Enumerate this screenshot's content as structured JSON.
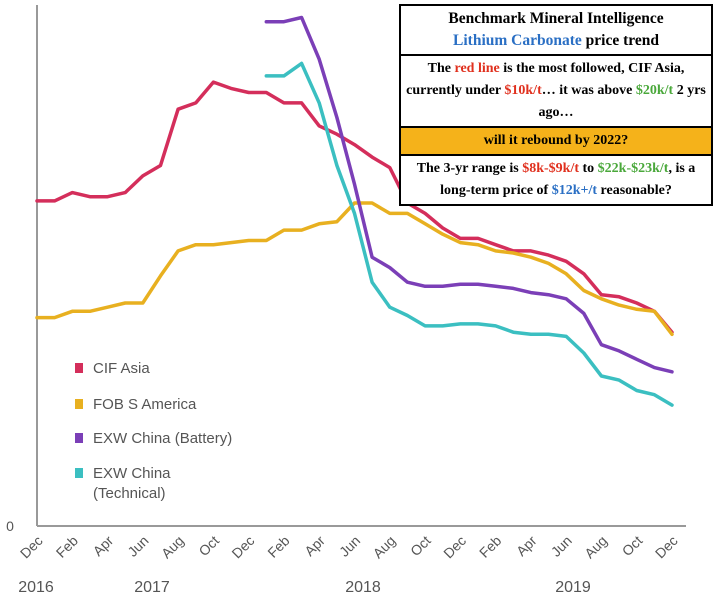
{
  "chart_data": {
    "type": "line",
    "x": [
      "Dec 2016",
      "Jan 2017",
      "Feb 2017",
      "Mar 2017",
      "Apr 2017",
      "May 2017",
      "Jun 2017",
      "Jul 2017",
      "Aug 2017",
      "Sep 2017",
      "Oct 2017",
      "Nov 2017",
      "Dec 2017",
      "Jan 2018",
      "Feb 2018",
      "Mar 2018",
      "Apr 2018",
      "May 2018",
      "Jun 2018",
      "Jul 2018",
      "Aug 2018",
      "Sep 2018",
      "Oct 2018",
      "Nov 2018",
      "Dec 2018",
      "Jan 2019",
      "Feb 2019",
      "Mar 2019",
      "Apr 2019",
      "May 2019",
      "Jun 2019",
      "Jul 2019",
      "Aug 2019",
      "Sep 2019",
      "Oct 2019",
      "Nov 2019",
      "Dec 2019"
    ],
    "x_tick_labels": [
      "Dec",
      "Feb",
      "Apr",
      "Jun",
      "Aug",
      "Oct",
      "Dec",
      "Feb",
      "Apr",
      "Jun",
      "Aug",
      "Oct",
      "Dec",
      "Feb",
      "Apr",
      "Jun",
      "Aug",
      "Oct",
      "Dec"
    ],
    "year_labels": [
      "2016",
      "2017",
      "2018",
      "2019"
    ],
    "y_tick_labels": [
      "0"
    ],
    "ylim": [
      0,
      25000
    ],
    "series": [
      {
        "name": "CIF Asia",
        "color": "#d42e5b",
        "values": [
          15600,
          15600,
          16000,
          15800,
          15800,
          16000,
          16800,
          17300,
          20000,
          20300,
          21300,
          21000,
          20800,
          20800,
          20300,
          20300,
          19200,
          18800,
          18300,
          17700,
          17200,
          15500,
          15000,
          14300,
          13800,
          13800,
          13500,
          13200,
          13200,
          13000,
          12700,
          12100,
          11100,
          11000,
          10700,
          10300,
          9300
        ]
      },
      {
        "name": "FOB S America",
        "color": "#e8b020",
        "values": [
          10000,
          10000,
          10300,
          10300,
          10500,
          10700,
          10700,
          12000,
          13200,
          13500,
          13500,
          13600,
          13700,
          13700,
          14200,
          14200,
          14500,
          14600,
          15500,
          15500,
          15000,
          15000,
          14500,
          14000,
          13600,
          13500,
          13200,
          13100,
          12900,
          12600,
          12100,
          11300,
          10900,
          10600,
          10400,
          10300,
          9200
        ]
      },
      {
        "name": "EXW China (Battery)",
        "color": "#7b3fb7",
        "values": [
          null,
          null,
          null,
          null,
          null,
          null,
          null,
          null,
          null,
          null,
          null,
          null,
          null,
          24200,
          24200,
          24400,
          22400,
          19600,
          16400,
          12900,
          12400,
          11700,
          11500,
          11500,
          11600,
          11600,
          11500,
          11400,
          11200,
          11100,
          10900,
          10200,
          8700,
          8400,
          8000,
          7600,
          7400
        ]
      },
      {
        "name": "EXW China (Technical)",
        "color": "#3bbfc1",
        "values": [
          null,
          null,
          null,
          null,
          null,
          null,
          null,
          null,
          null,
          null,
          null,
          null,
          null,
          21600,
          21600,
          22200,
          20300,
          17300,
          15000,
          11700,
          10500,
          10100,
          9600,
          9600,
          9700,
          9700,
          9600,
          9300,
          9200,
          9200,
          9100,
          8300,
          7200,
          7000,
          6500,
          6300,
          5800
        ]
      }
    ],
    "legend_position": "bottom-left",
    "grid": false
  },
  "note": {
    "title_line1": "Benchmark Mineral Intelligence",
    "title_line2_a": "Lithium Carbonate",
    "title_line2_b": " price trend",
    "p1_a": "The ",
    "p1_b": "red line",
    "p1_c": " is the most followed, CIF Asia, currently under ",
    "p1_d": "$10k/t",
    "p1_e": "… it was above ",
    "p1_f": "$20k/t",
    "p1_g": " 2 yrs ago…",
    "question": "will it rebound by 2022?",
    "p2_a": "The 3-yr range is ",
    "p2_b": "$8k-$9k/t",
    "p2_c": " to ",
    "p2_d": "$22k-$23k/t",
    "p2_e": ", is a long-term price of ",
    "p2_f": "$12k+/t",
    "p2_g": " reasonable?"
  }
}
